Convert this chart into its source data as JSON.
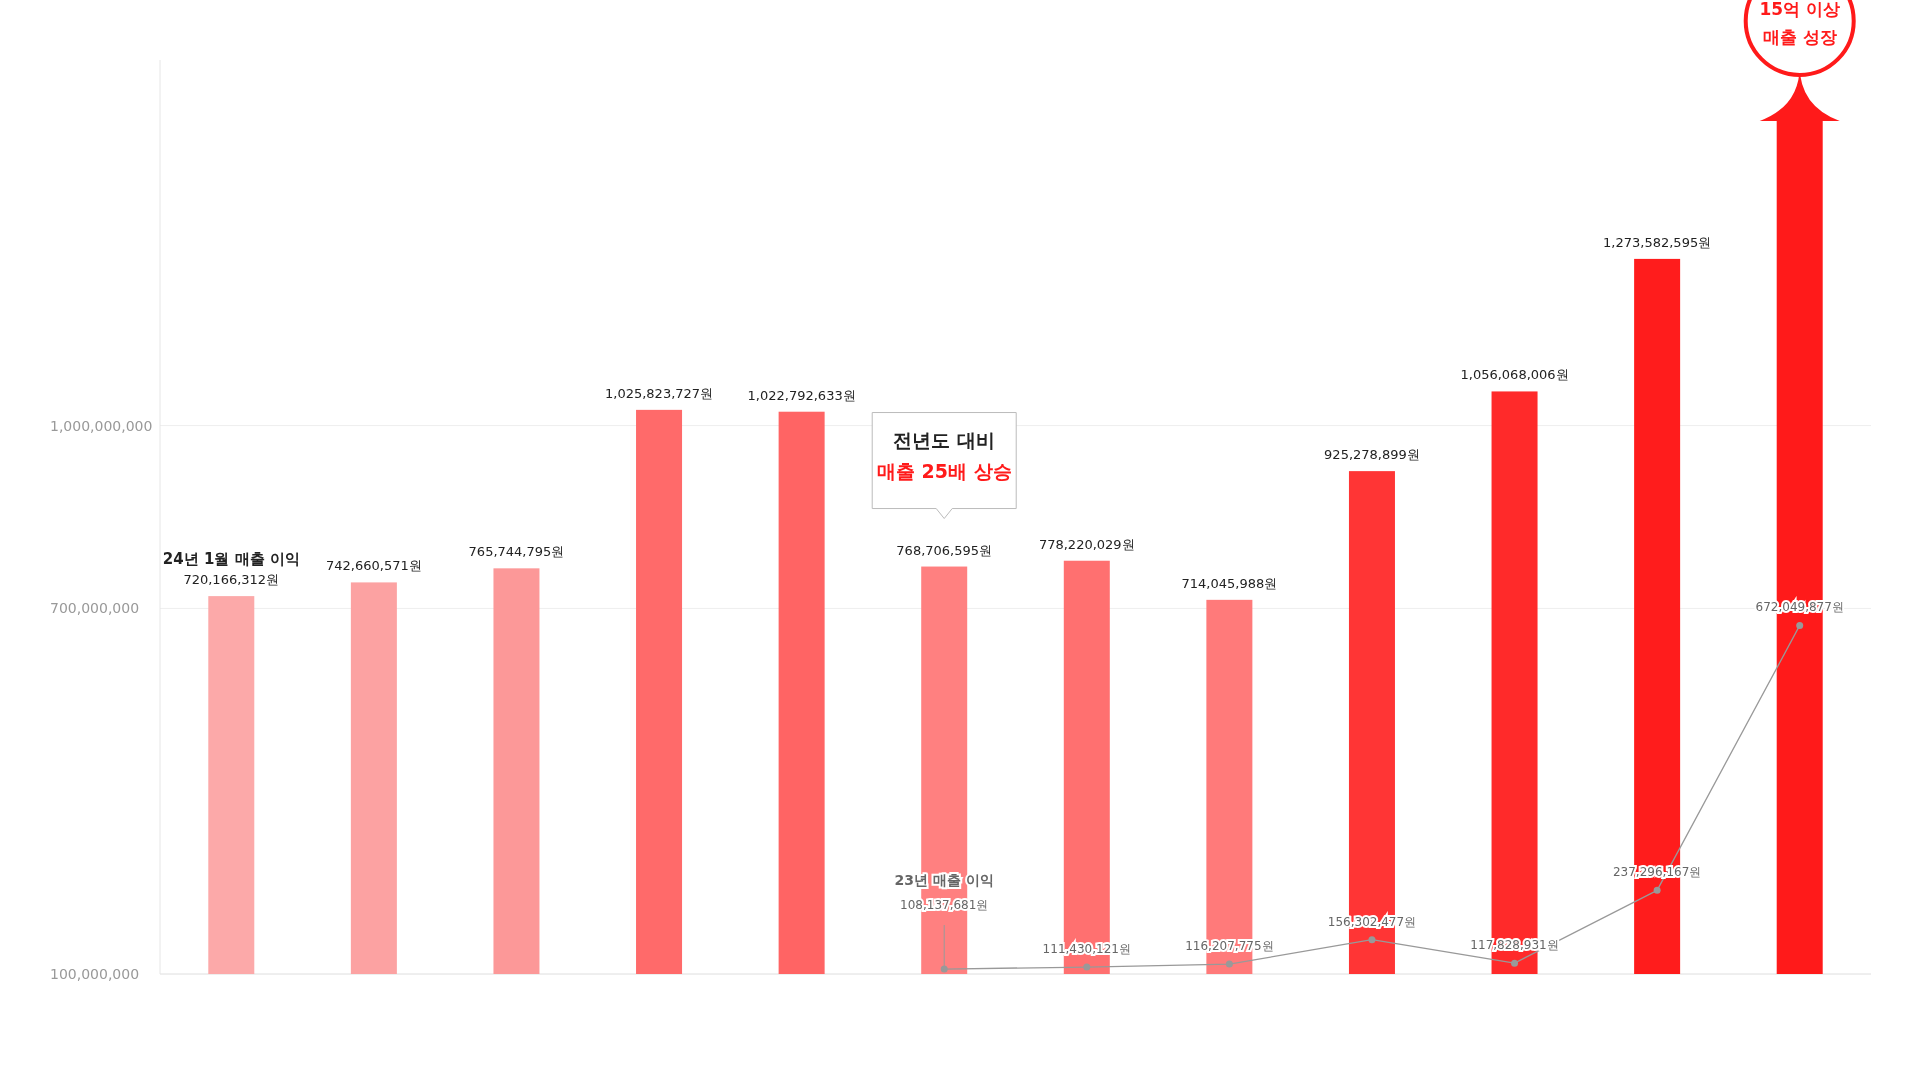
{
  "chart_data": {
    "type": "bar",
    "categories": [
      null,
      null,
      null,
      null,
      null,
      null,
      null,
      null,
      null,
      null,
      null,
      null
    ],
    "ylim": [
      100000000,
      1600000000
    ],
    "yticks": [
      {
        "value": 100000000,
        "label": "100,000,000"
      },
      {
        "value": 700000000,
        "label": "700,000,000"
      },
      {
        "value": 1000000000,
        "label": "1,000,000,000"
      }
    ],
    "grid": "y",
    "legend": false,
    "series": [
      {
        "colors": [
          "#fca9a9",
          "#fca2a2",
          "#fc9898",
          "#ff6a6a",
          "#ff6464",
          "#ff8080",
          "#ff7070",
          "#ff7a7a",
          "#ff3535",
          "#ff2a2a",
          "#ff1c1c",
          "#ff1a1a"
        ],
        "values": [
          720166312,
          742660571,
          765744795,
          1025823727,
          1022792633,
          768706595,
          778220029,
          714045988,
          925278899,
          1056068006,
          1273582595,
          1500000000
        ],
        "value_labels": [
          "720,166,312원",
          "742,660,571원",
          "765,744,795원",
          "1,025,823,727원",
          "1,022,792,633원",
          "768,706,595원",
          "778,220,029원",
          "714,045,988원",
          "925,278,899원",
          "1,056,068,006원",
          "1,273,582,595원",
          null
        ]
      },
      {
        "type": "line",
        "name": "23년 매출 이익",
        "color": "#999999",
        "marker": "circle",
        "line_style": "solid",
        "values": [
          null,
          null,
          null,
          null,
          null,
          108137681,
          111430121,
          116207775,
          156302477,
          117828931,
          237296167,
          672049877
        ],
        "value_labels": [
          null,
          null,
          null,
          null,
          null,
          "108,137,681원",
          "111,430,121원",
          "116,207,775원",
          "156,302,477원",
          "117,828,931원",
          "237,296,167원",
          "672,049,877원"
        ]
      }
    ],
    "annotations": [
      "24년 1월 매출 이익",
      "전년도 대비\n매출 25배 상승",
      "15억 이상\n매출 성장"
    ]
  }
}
